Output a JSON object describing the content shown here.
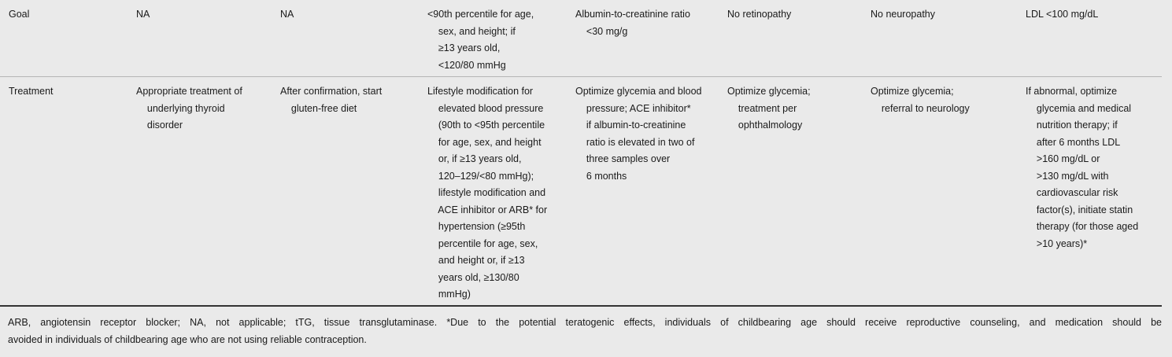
{
  "table": {
    "rows": [
      {
        "label": "Goal",
        "cells": [
          "NA",
          "NA",
          "<90th percentile for age,\n    sex, and height; if\n    ≥13 years old,\n    <120/80 mmHg",
          "Albumin-to-creatinine ratio\n    <30 mg/g",
          "No retinopathy",
          "No neuropathy",
          "LDL <100 mg/dL"
        ]
      },
      {
        "label": "Treatment",
        "cells": [
          "Appropriate treatment of\n    underlying thyroid\n    disorder",
          "After confirmation, start\n    gluten-free diet",
          "Lifestyle modification for\n    elevated blood pressure\n    (90th to <95th percentile\n    for age, sex, and height\n    or, if ≥13 years old,\n    120–129/<80 mmHg);\n    lifestyle modification and\n    ACE inhibitor or ARB* for\n    hypertension (≥95th\n    percentile for age, sex,\n    and height or, if ≥13\n    years old, ≥130/80\n    mmHg)",
          "Optimize glycemia and blood\n    pressure; ACE inhibitor*\n    if albumin-to-creatinine\n    ratio is elevated in two of\n    three samples over\n    6 months",
          "Optimize glycemia;\n    treatment per\n    ophthalmology",
          "Optimize glycemia;\n    referral to neurology",
          "If abnormal, optimize\n    glycemia and medical\n    nutrition therapy; if\n    after 6 months LDL\n    >160 mg/dL or\n    >130 mg/dL with\n    cardiovascular risk\n    factor(s), initiate statin\n    therapy (for those aged\n    >10 years)*"
        ]
      }
    ]
  },
  "footnote": {
    "line1": "ARB, angiotensin receptor blocker; NA, not applicable; tTG, tissue transglutaminase. *Due to the potential teratogenic effects, individuals of childbearing age should receive reproductive counseling, and medication should be",
    "line2": "avoided in individuals of childbearing age who are not using reliable contraception."
  }
}
